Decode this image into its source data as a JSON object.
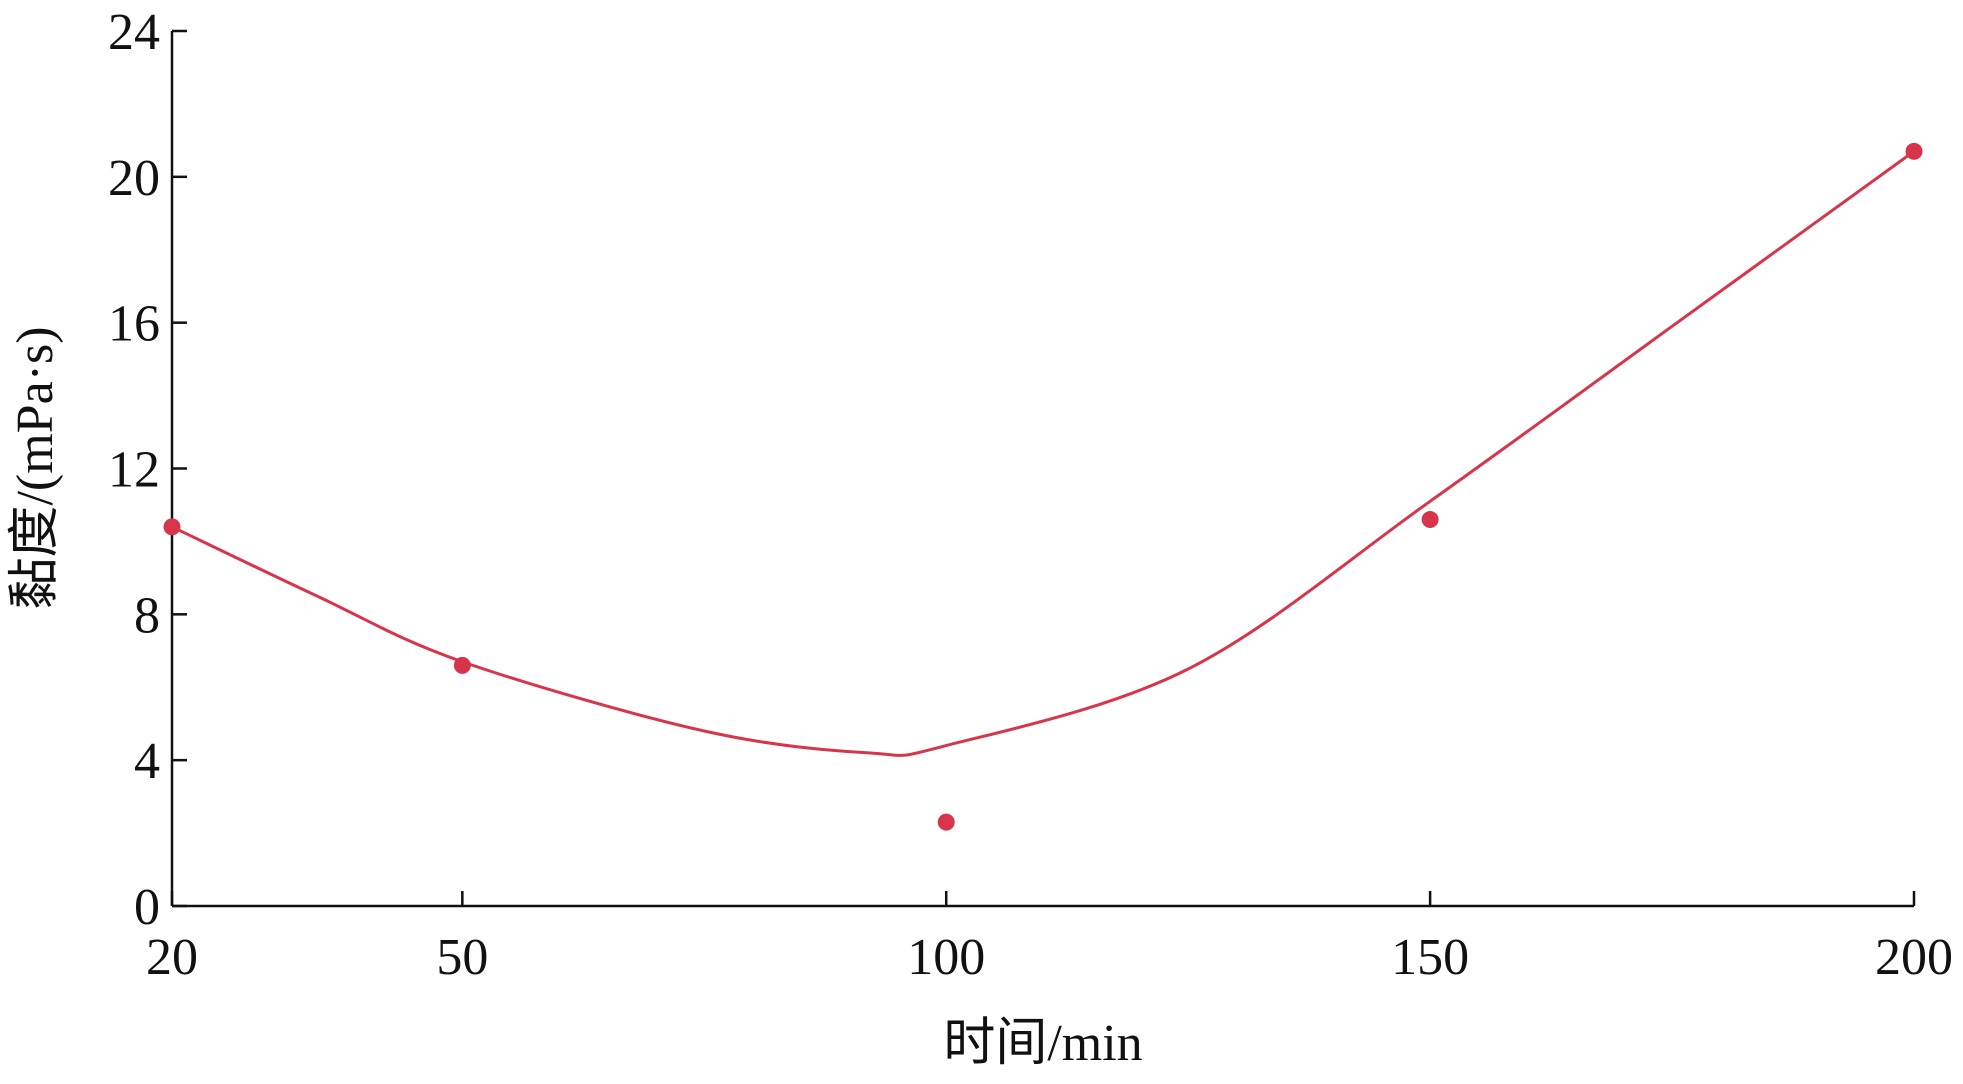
{
  "chart_data": {
    "type": "scatter",
    "x_label": "时间/min",
    "y_label": "黏度/(mPa·s)",
    "xlim": [
      20,
      200
    ],
    "xticks": [
      20,
      50,
      100,
      150,
      200
    ],
    "ylim": [
      0,
      24
    ],
    "yticks": [
      0,
      4,
      8,
      12,
      16,
      20,
      24
    ],
    "grid": false,
    "series": [
      {
        "type": "scatter",
        "color": "#d7354b",
        "x": [
          20,
          50,
          100,
          150,
          200
        ],
        "values": [
          10.4,
          6.6,
          2.3,
          10.6,
          20.7
        ]
      },
      {
        "type": "line",
        "color": "#d7354b",
        "x": [
          20,
          35,
          50,
          75,
          92,
          100,
          125,
          150,
          175,
          200
        ],
        "values": [
          10.4,
          8.5,
          6.7,
          4.8,
          4.2,
          4.4,
          6.5,
          11.1,
          15.9,
          20.7
        ]
      }
    ]
  }
}
